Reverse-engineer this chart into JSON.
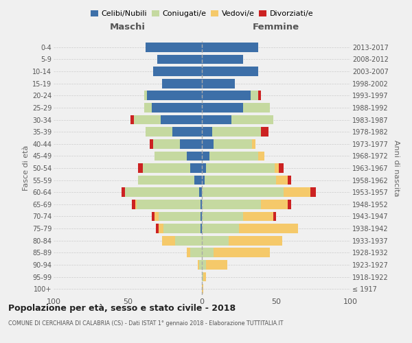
{
  "age_groups": [
    "100+",
    "95-99",
    "90-94",
    "85-89",
    "80-84",
    "75-79",
    "70-74",
    "65-69",
    "60-64",
    "55-59",
    "50-54",
    "45-49",
    "40-44",
    "35-39",
    "30-34",
    "25-29",
    "20-24",
    "15-19",
    "10-14",
    "5-9",
    "0-4"
  ],
  "birth_years": [
    "≤ 1917",
    "1918-1922",
    "1923-1927",
    "1928-1932",
    "1933-1937",
    "1938-1942",
    "1943-1947",
    "1948-1952",
    "1953-1957",
    "1958-1962",
    "1963-1967",
    "1968-1972",
    "1973-1977",
    "1978-1982",
    "1983-1987",
    "1988-1992",
    "1993-1997",
    "1998-2002",
    "2003-2007",
    "2008-2012",
    "2013-2017"
  ],
  "colors": {
    "celibi": "#3d6fa8",
    "coniugati": "#c5d9a0",
    "vedovi": "#f5c96a",
    "divorziati": "#cc2222"
  },
  "males": {
    "celibi": [
      0,
      0,
      0,
      0,
      0,
      1,
      1,
      1,
      2,
      5,
      8,
      10,
      15,
      20,
      28,
      34,
      37,
      27,
      33,
      30,
      38
    ],
    "coniugati": [
      0,
      0,
      2,
      8,
      18,
      25,
      28,
      43,
      50,
      38,
      32,
      22,
      18,
      18,
      18,
      5,
      2,
      0,
      0,
      0,
      0
    ],
    "vedovi": [
      0,
      0,
      1,
      2,
      9,
      3,
      3,
      1,
      0,
      0,
      0,
      0,
      0,
      0,
      0,
      0,
      0,
      0,
      0,
      0,
      0
    ],
    "divorziati": [
      0,
      0,
      0,
      0,
      0,
      2,
      2,
      2,
      2,
      0,
      3,
      0,
      2,
      0,
      2,
      0,
      0,
      0,
      0,
      0,
      0
    ]
  },
  "females": {
    "celibi": [
      0,
      0,
      0,
      0,
      0,
      0,
      0,
      0,
      0,
      2,
      3,
      5,
      8,
      7,
      20,
      28,
      33,
      22,
      38,
      28,
      38
    ],
    "coniugati": [
      0,
      1,
      3,
      8,
      18,
      25,
      28,
      40,
      55,
      48,
      46,
      33,
      26,
      33,
      28,
      18,
      5,
      0,
      0,
      0,
      0
    ],
    "vedovi": [
      1,
      2,
      14,
      38,
      36,
      40,
      20,
      18,
      18,
      8,
      3,
      4,
      2,
      0,
      0,
      0,
      0,
      0,
      0,
      0,
      0
    ],
    "divorziati": [
      0,
      0,
      0,
      0,
      0,
      0,
      2,
      2,
      4,
      2,
      3,
      0,
      0,
      5,
      0,
      0,
      2,
      0,
      0,
      0,
      0
    ]
  },
  "title": "Popolazione per età, sesso e stato civile - 2018",
  "subtitle": "COMUNE DI CERCHIARA DI CALABRIA (CS) - Dati ISTAT 1° gennaio 2018 - Elaborazione TUTTITALIA.IT",
  "xlabel_left": "Maschi",
  "xlabel_right": "Femmine",
  "ylabel_left": "Fasce di età",
  "ylabel_right": "Anni di nascita",
  "xlim": 100,
  "background_color": "#f0f0f0",
  "grid_color": "#cccccc"
}
